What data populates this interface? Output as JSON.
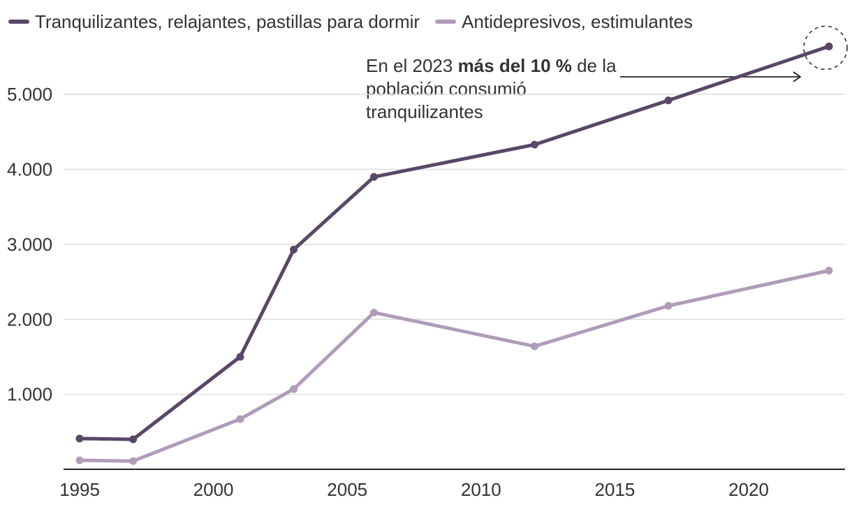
{
  "legend": {
    "items": [
      {
        "label": "Tranquilizantes, relajantes, pastillas para dormir",
        "color": "#584766"
      },
      {
        "label": "Antidepresivos, estimulantes",
        "color": "#B09CB8"
      }
    ]
  },
  "annotation": {
    "prefix": "En el 2023 ",
    "bold": "más del 10 %",
    "suffix": " de la población consumió tranquilizantes"
  },
  "chart_data": {
    "type": "line",
    "title": "",
    "xlabel": "",
    "ylabel": "",
    "xlim": [
      1994.4,
      2023.6
    ],
    "ylim": [
      0,
      5700
    ],
    "x_ticks": [
      1995,
      2000,
      2005,
      2010,
      2015,
      2020
    ],
    "x_tick_labels": [
      "1995",
      "2000",
      "2005",
      "2010",
      "2015",
      "2020"
    ],
    "y_ticks": [
      1000,
      2000,
      3000,
      4000,
      5000
    ],
    "y_tick_labels": [
      "1.000",
      "2.000",
      "3.000",
      "4.000",
      "5.000"
    ],
    "grid": true,
    "legend_position": "top-left",
    "series": [
      {
        "name": "Tranquilizantes, relajantes, pastillas para dormir",
        "color": "#584766",
        "x": [
          1995,
          1997,
          2001,
          2003,
          2006,
          2012,
          2017,
          2023
        ],
        "values": [
          410,
          400,
          1500,
          2930,
          3900,
          4330,
          4920,
          5640
        ]
      },
      {
        "name": "Antidepresivos, estimulantes",
        "color": "#B09CB8",
        "x": [
          1995,
          1997,
          2001,
          2003,
          2006,
          2012,
          2017,
          2023
        ],
        "values": [
          120,
          110,
          670,
          1070,
          2090,
          1640,
          2180,
          2650
        ]
      }
    ]
  }
}
